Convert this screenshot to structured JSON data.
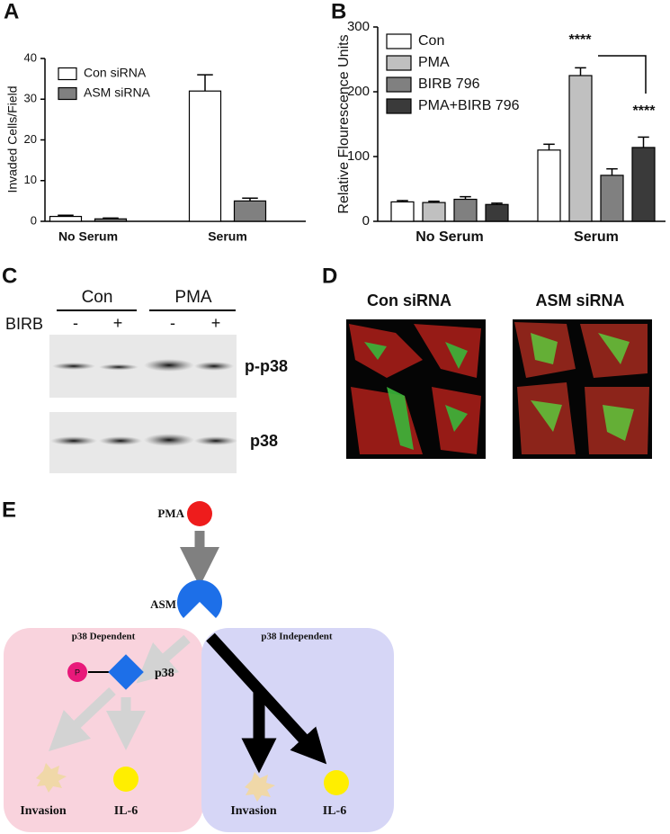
{
  "panel_labels": [
    "A",
    "B",
    "C",
    "D",
    "E"
  ],
  "chart_data": [
    {
      "type": "bar",
      "y_label": "Invaded Cells/Field",
      "categories": [
        "No Serum",
        "Serum"
      ],
      "series": [
        {
          "name": "Con siRNA",
          "color": "#ffffff",
          "values": [
            1.2,
            32
          ],
          "errors": [
            0.3,
            4
          ]
        },
        {
          "name": "ASM siRNA",
          "color": "#808080",
          "values": [
            0.6,
            5
          ],
          "errors": [
            0.2,
            0.7
          ]
        }
      ],
      "ylim": [
        0,
        40
      ],
      "yticks": [
        0,
        10,
        20,
        30,
        40
      ]
    },
    {
      "type": "bar",
      "y_label": "Relative Flourescence Units",
      "categories": [
        "No Serum",
        "Serum"
      ],
      "series": [
        {
          "name": "Con",
          "color": "#ffffff",
          "values": [
            30,
            110
          ],
          "errors": [
            2,
            9
          ]
        },
        {
          "name": "PMA",
          "color": "#c0c0c0",
          "values": [
            29,
            225
          ],
          "errors": [
            2,
            12
          ]
        },
        {
          "name": "BIRB 796",
          "color": "#808080",
          "values": [
            34,
            71
          ],
          "errors": [
            4,
            10
          ]
        },
        {
          "name": "PMA+BIRB 796",
          "color": "#3a3a3a",
          "values": [
            26,
            114
          ],
          "errors": [
            2,
            16
          ]
        }
      ],
      "annotations": [
        "****",
        "****"
      ],
      "ylim": [
        0,
        300
      ],
      "yticks": [
        0,
        100,
        200,
        300
      ]
    }
  ],
  "blot": {
    "groups": [
      "Con",
      "PMA"
    ],
    "row_label": "BIRB",
    "treatments": [
      "-",
      "+",
      "-",
      "+"
    ],
    "bands": [
      "p-p38",
      "p38"
    ]
  },
  "images": {
    "labels": [
      "Con siRNA",
      "ASM siRNA"
    ]
  },
  "diagram": {
    "pma": "PMA",
    "asm": "ASM",
    "regions": [
      "p38 Dependent",
      "p38 Independent"
    ],
    "phospho": "P",
    "p38": "p38",
    "outputs": [
      "Invasion",
      "IL-6",
      "Invasion",
      "IL-6"
    ]
  }
}
